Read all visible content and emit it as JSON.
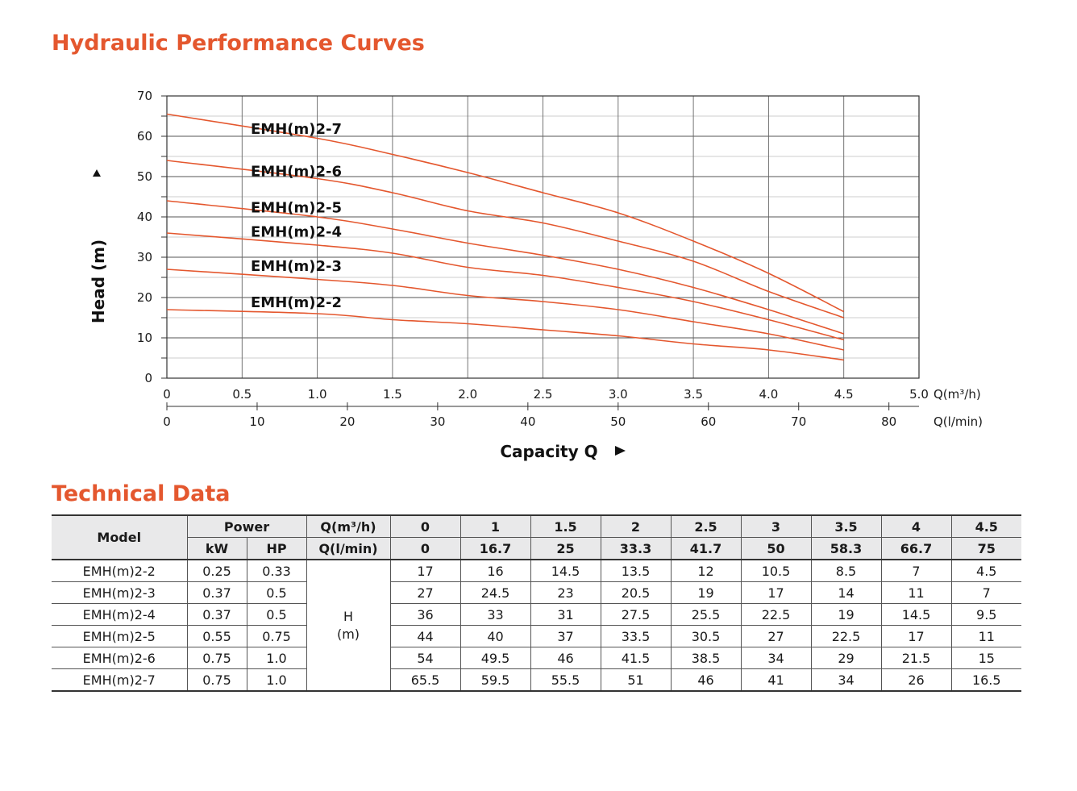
{
  "chart_title": "Hydraulic Performance Curves",
  "table_title": "Technical Data",
  "chart_data": {
    "type": "line",
    "ylabel": "Head (m)",
    "xlabel": "Capacity Q",
    "x_unit_primary": "Q(m³/h)",
    "x_unit_secondary": "Q(l/min)",
    "ylim": [
      0,
      70
    ],
    "xlim": [
      0,
      5.0
    ],
    "y_ticks": [
      "0",
      "10",
      "20",
      "30",
      "40",
      "50",
      "60",
      "70"
    ],
    "x_ticks_primary": [
      "0",
      "0.5",
      "1.0",
      "1.5",
      "2.0",
      "2.5",
      "3.0",
      "3.5",
      "4.0",
      "4.5",
      "5.0"
    ],
    "x_ticks_secondary": [
      "0",
      "10",
      "20",
      "30",
      "40",
      "50",
      "60",
      "70",
      "80"
    ],
    "grid": true,
    "x": [
      0,
      1,
      1.5,
      2,
      2.5,
      3,
      3.5,
      4,
      4.5
    ],
    "series": [
      {
        "name": "EMH(m)2-7",
        "values": [
          65.5,
          59.5,
          55.5,
          51,
          46,
          41,
          34,
          26,
          16.5
        ]
      },
      {
        "name": "EMH(m)2-6",
        "values": [
          54,
          49.5,
          46,
          41.5,
          38.5,
          34,
          29,
          21.5,
          15
        ]
      },
      {
        "name": "EMH(m)2-5",
        "values": [
          44,
          40,
          37,
          33.5,
          30.5,
          27,
          22.5,
          17,
          11
        ]
      },
      {
        "name": "EMH(m)2-4",
        "values": [
          36,
          33,
          31,
          27.5,
          25.5,
          22.5,
          19,
          14.5,
          9.5
        ]
      },
      {
        "name": "EMH(m)2-3",
        "values": [
          27,
          24.5,
          23,
          20.5,
          19,
          17,
          14,
          11,
          7
        ]
      },
      {
        "name": "EMH(m)2-2",
        "values": [
          17,
          16,
          14.5,
          13.5,
          12,
          10.5,
          8.5,
          7,
          4.5
        ]
      }
    ],
    "label_values": [
      62,
      51.5,
      42.5,
      36.5,
      28,
      19
    ],
    "curve_color": "#e4572e"
  },
  "table": {
    "model_header": "Model",
    "power_header": "Power",
    "q_m3h_header": "Q(m³/h)",
    "q_lmin_header": "Q(l/min)",
    "kw_header": "kW",
    "hp_header": "HP",
    "head_label": "H",
    "head_unit": "(m)",
    "q_m3h": [
      "0",
      "1",
      "1.5",
      "2",
      "2.5",
      "3",
      "3.5",
      "4",
      "4.5"
    ],
    "q_lmin": [
      "0",
      "16.7",
      "25",
      "33.3",
      "41.7",
      "50",
      "58.3",
      "66.7",
      "75"
    ],
    "rows": [
      {
        "model": "EMH(m)2-2",
        "kw": "0.25",
        "hp": "0.33",
        "h": [
          "17",
          "16",
          "14.5",
          "13.5",
          "12",
          "10.5",
          "8.5",
          "7",
          "4.5"
        ]
      },
      {
        "model": "EMH(m)2-3",
        "kw": "0.37",
        "hp": "0.5",
        "h": [
          "27",
          "24.5",
          "23",
          "20.5",
          "19",
          "17",
          "14",
          "11",
          "7"
        ]
      },
      {
        "model": "EMH(m)2-4",
        "kw": "0.37",
        "hp": "0.5",
        "h": [
          "36",
          "33",
          "31",
          "27.5",
          "25.5",
          "22.5",
          "19",
          "14.5",
          "9.5"
        ]
      },
      {
        "model": "EMH(m)2-5",
        "kw": "0.55",
        "hp": "0.75",
        "h": [
          "44",
          "40",
          "37",
          "33.5",
          "30.5",
          "27",
          "22.5",
          "17",
          "11"
        ]
      },
      {
        "model": "EMH(m)2-6",
        "kw": "0.75",
        "hp": "1.0",
        "h": [
          "54",
          "49.5",
          "46",
          "41.5",
          "38.5",
          "34",
          "29",
          "21.5",
          "15"
        ]
      },
      {
        "model": "EMH(m)2-7",
        "kw": "0.75",
        "hp": "1.0",
        "h": [
          "65.5",
          "59.5",
          "55.5",
          "51",
          "46",
          "41",
          "34",
          "26",
          "16.5"
        ]
      }
    ]
  }
}
